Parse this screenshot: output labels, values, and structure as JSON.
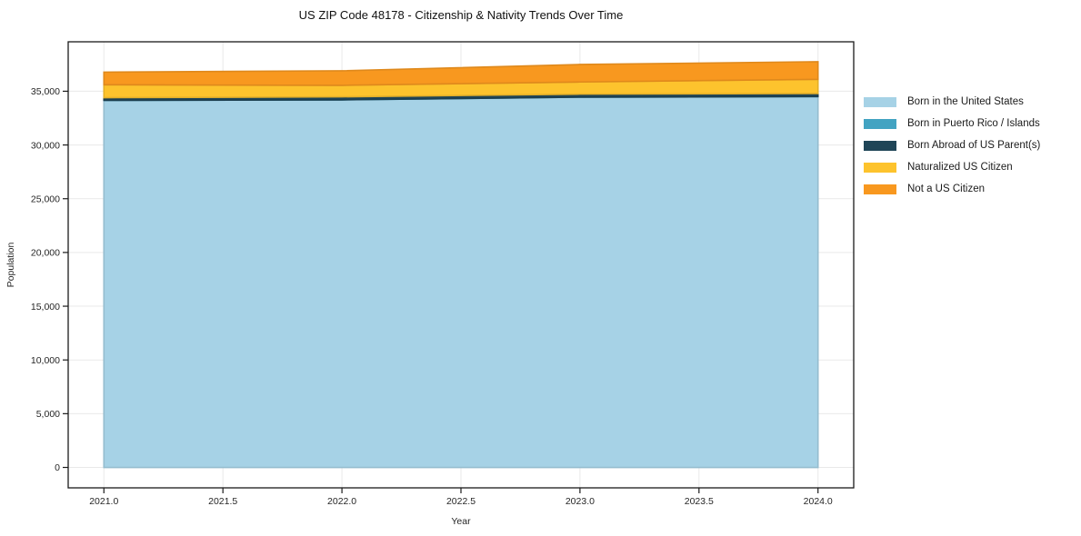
{
  "title": "US ZIP Code 48178 - Citizenship & Nativity Trends Over Time",
  "chart_data": {
    "type": "area",
    "stacked": true,
    "title": "US ZIP Code 48178 - Citizenship & Nativity Trends Over Time",
    "xlabel": "Year",
    "ylabel": "Population",
    "x": [
      2021,
      2022,
      2023,
      2024
    ],
    "series": [
      {
        "name": "Born in the United States",
        "color": "#a6d2e6",
        "values": [
          34150,
          34200,
          34450,
          34500
        ]
      },
      {
        "name": "Born in Puerto Rico / Islands",
        "color": "#42a3c2",
        "values": [
          0,
          0,
          0,
          0
        ]
      },
      {
        "name": "Born Abroad of US Parent(s)",
        "color": "#1f4557",
        "values": [
          250,
          280,
          280,
          290
        ]
      },
      {
        "name": "Naturalized US Citizen",
        "color": "#fdc32d",
        "values": [
          1200,
          1070,
          1130,
          1320
        ]
      },
      {
        "name": "Not a US Citizen",
        "color": "#f8981f",
        "values": [
          1180,
          1350,
          1630,
          1640
        ]
      }
    ],
    "xlim": [
      2020.85,
      2024.15
    ],
    "ylim": [
      -1900,
      39600
    ],
    "x_ticks": [
      {
        "v": 2021.0,
        "label": "2021.0"
      },
      {
        "v": 2021.5,
        "label": "2021.5"
      },
      {
        "v": 2022.0,
        "label": "2022.0"
      },
      {
        "v": 2022.5,
        "label": "2022.5"
      },
      {
        "v": 2023.0,
        "label": "2023.0"
      },
      {
        "v": 2023.5,
        "label": "2023.5"
      },
      {
        "v": 2024.0,
        "label": "2024.0"
      }
    ],
    "y_ticks": [
      {
        "v": 0,
        "label": "0"
      },
      {
        "v": 5000,
        "label": "5,000"
      },
      {
        "v": 10000,
        "label": "10,000"
      },
      {
        "v": 15000,
        "label": "15,000"
      },
      {
        "v": 20000,
        "label": "20,000"
      },
      {
        "v": 25000,
        "label": "25,000"
      },
      {
        "v": 30000,
        "label": "30,000"
      },
      {
        "v": 35000,
        "label": "35,000"
      }
    ],
    "grid": true,
    "grid_color": "#e9e9e9",
    "spine_color": "#1a1a1a",
    "legend_position": "right"
  }
}
